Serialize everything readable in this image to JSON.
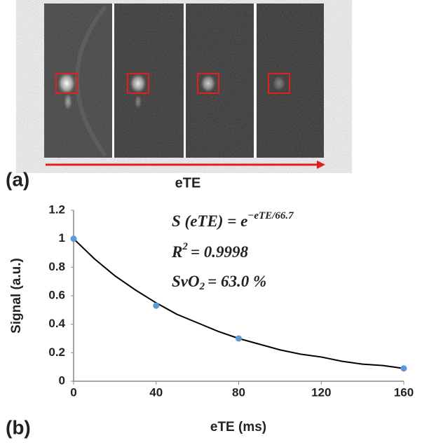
{
  "panel_a": {
    "label": "(a)",
    "arrow_label": "eTE"
  },
  "chart_data": {
    "type": "scatter",
    "panel_label": "(b)",
    "x_label": "eTE (ms)",
    "y_label": "Signal (a.u.)",
    "x": [
      0,
      40,
      80,
      160
    ],
    "values": [
      1,
      0.53,
      0.3,
      0.09
    ],
    "color": "#5b9bd5",
    "fit": {
      "x": [
        0,
        10,
        20,
        30,
        40,
        50,
        60,
        70,
        80,
        90,
        100,
        110,
        120,
        130,
        140,
        150,
        160
      ],
      "values": [
        1,
        0.86,
        0.74,
        0.64,
        0.55,
        0.47,
        0.41,
        0.35,
        0.3,
        0.26,
        0.22,
        0.19,
        0.17,
        0.14,
        0.12,
        0.11,
        0.09
      ],
      "color": "#000000"
    },
    "xlim": [
      0,
      160
    ],
    "ylim": [
      0,
      1.2
    ],
    "xticks": [
      0,
      40,
      80,
      120,
      160
    ],
    "yticks": [
      0,
      {
        "value": 0.2,
        "label": "0.2"
      },
      {
        "value": 0.4,
        "label": "0.4"
      },
      {
        "value": 0.6,
        "label": "0.6"
      },
      {
        "value": 0.8,
        "label": "0.8"
      },
      1,
      {
        "value": 1.2,
        "label": "1.2"
      }
    ],
    "grid": false,
    "annotations": [
      {
        "text": "S (eTE) = e",
        "sup": "−eTE/66.7"
      },
      {
        "text": "R",
        "sup": "2",
        "rest": "= 0.9998"
      },
      {
        "text": "SvO",
        "sub": "2",
        "rest": "= 63.0 %"
      }
    ]
  }
}
